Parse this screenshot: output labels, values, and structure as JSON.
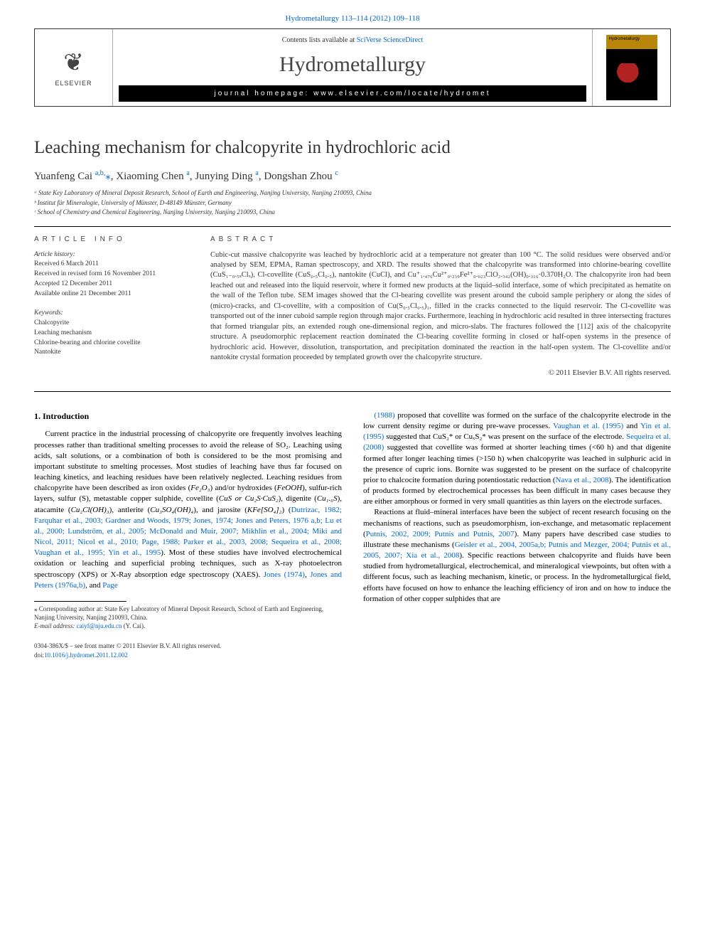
{
  "top_link": "Hydrometallurgy 113–114 (2012) 109–118",
  "header": {
    "contents_prefix": "Contents lists available at ",
    "contents_link": "SciVerse ScienceDirect",
    "journal": "Hydrometallurgy",
    "homepage_label": "journal homepage: www.elsevier.com/locate/hydromet",
    "elsevier_brand": "ELSEVIER",
    "cover_text": "Hydrometallurgy"
  },
  "title": "Leaching mechanism for chalcopyrite in hydrochloric acid",
  "authors_html": "Yuanfeng Cai <a href='#'><sup>a,b,</sup></a><a href='#'>⁎</a>, Xiaoming Chen <a href='#'><sup>a</sup></a>, Junying Ding <a href='#'><sup>a</sup></a>, Dongshan Zhou <a href='#'><sup>c</sup></a>",
  "affiliations": [
    "ᵃ State Key Laboratory of Mineral Deposit Research, School of Earth and Engineering, Nanjing University, Nanjing 210093, China",
    "ᵇ Institut für Mineralogie, University of Münster, D-48149 Münster, Germany",
    "ᶜ School of Chemistry and Chemical Engineering, Nanjing University, Nanjing 210093, China"
  ],
  "info_head": "ARTICLE INFO",
  "abstract_head": "ABSTRACT",
  "history": {
    "label": "Article history:",
    "items": [
      "Received 6 March 2011",
      "Received in revised form 16 November 2011",
      "Accepted 12 December 2011",
      "Available online 21 December 2011"
    ]
  },
  "keywords": {
    "label": "Keywords:",
    "items": [
      "Chalcopyrite",
      "Leaching mechanism",
      "Chlorine-bearing and chlorine covellite",
      "Nantokite"
    ]
  },
  "abstract": "Cubic-cut massive chalcopyrite was leached by hydrochloric acid at a temperature not greater than 100 °C. The solid residues were observed and/or analysed by SEM, EPMA, Raman spectroscopy, and XRD. The results showed that the chalcopyrite was transformed into chlorine-bearing covellite (CuS₁₋₀.₅ₓClₓ), Cl-covellite (CuS₀.₅Cl₀.₅), nantokite (CuCl), and Cu⁺₁.₄₇₆Cu²⁺₀.₂₃₉Fe²⁺₀.₀₂₃ClO₂.₃₄₂(OH)₀.₃₁₆·0.370H₂O. The chalcopyrite iron had been leached out and released into the liquid reservoir, where it formed new products at the liquid–solid interface, some of which precipitated as hematite on the wall of the Teflon tube. SEM images showed that the Cl-bearing covellite was present around the cuboid sample periphery or along the sides of (micro)-cracks, and Cl-covellite, with a composition of Cu(S₀.₅Cl₀.₅)₁, filled in the cracks connected to the liquid reservoir. The Cl-covellite was transported out of the inner cuboid sample region through major cracks. Furthermore, leaching in hydrochloric acid resulted in three intersecting fractures that formed triangular pits, an extended rough one-dimensional region, and micro-slabs. The fractures followed the [112] axis of the chalcopyrite structure. A pseudomorphic replacement reaction dominated the Cl-bearing covellite forming in closed or half-open systems in the presence of hydrochloric acid. However, dissolution, transportation, and precipitation dominated the reaction in the half-open system. The Cl-covellite and/or nantokite crystal formation proceeded by templated growth over the chalcopyrite structure.",
  "copyright": "© 2011 Elsevier B.V. All rights reserved.",
  "intro_head": "1. Introduction",
  "intro_p1_html": "Current practice in the industrial processing of chalcopyrite ore frequently involves leaching processes rather than traditional smelting processes to avoid the release of SO₂. Leaching using acids, salt solutions, or a combination of both is considered to be the most promising and important substitute to smelting processes. Most studies of leaching have thus far focused on leaching kinetics, and leaching residues have been relatively neglected. Leaching residues from chalcopyrite have been described as iron oxides (<i>Fe₂O₃</i>) and/or hydroxides (<i>FeOOH</i>), sulfur-rich layers, sulfur (S), metastable copper sulphide, covellite (<i>CuS or Cu₂S·CuS₂</i>), digenite (<i>Cu₁.₆S</i>), atacamite (<i>Cu₂Cl(OH)₃</i>), antlerite (<i>Cu₃SO₄(OH)₄</i>), and jarosite (<i>KFe[SO₄]₂</i>) (<a href='#'>Dutrizac, 1982; Farquhar et al., 2003; Gardner and Woods, 1979; Jones, 1974; Jones and Peters, 1976 a,b; Lu et al., 2000; Lundström, et al., 2005; McDonald and Muir, 2007; Mikhlin et al., 2004; Miki and Nicol, 2011; Nicol et al., 2010; Page, 1988; Parker et al., 2003, 2008; Sequeira et al., 2008; Vaughan et al., 1995; Yin et al., 1995</a>). Most of these studies have involved electrochemical oxidation or leaching and superficial probing techniques, such as X-ray photoelectron spectroscopy (XPS) or X-Ray absorption edge spectroscopy (XAES). <a href='#'>Jones (1974)</a>, <a href='#'>Jones and Peters (1976a,b)</a>, and <a href='#'>Page</a>",
  "intro_p2_html": "<a href='#'>(1988)</a> proposed that covellite was formed on the surface of the chalcopyrite electrode in the low current density regime or during pre-wave processes. <a href='#'>Vaughan et al. (1995)</a> and <a href='#'>Yin et al. (1995)</a> suggested that CuS₂* or CuₓS₂* was present on the surface of the electrode. <a href='#'>Sequeira et al. (2008)</a> suggested that covellite was formed at shorter leaching times (&lt;60 h) and that digenite formed after longer leaching times (&gt;150 h) when chalcopyrite was leached in sulphuric acid in the presence of cupric ions. Bornite was suggested to be present on the surface of chalcopyrite prior to chalcocite formation during potentiostatic reduction (<a href='#'>Nava et al., 2008</a>). The identification of products formed by electrochemical processes has been difficult in many cases because they are either amorphous or formed in very small quantities as thin layers on the electrode surfaces.",
  "intro_p3_html": "Reactions at fluid–mineral interfaces have been the subject of recent research focusing on the mechanisms of reactions, such as pseudomorphism, ion-exchange, and metasomatic replacement (<a href='#'>Putnis, 2002, 2009; Putnis and Putnis, 2007</a>). Many papers have described case studies to illustrate these mechanisms (<a href='#'>Geisler et al., 2004, 2005a,b; Putnis and Mezger, 2004; Putnis et al., 2005, 2007; Xia et al., 2008</a>). Specific reactions between chalcopyrite and fluids have been studied from hydrometallurgical, electrochemical, and mineralogical viewpoints, but often with a different focus, such as leaching mechanism, kinetic, or process. In the hydrometallurgical field, efforts have focused on how to enhance the leaching efficiency of iron and on how to induce the formation of other copper sulphides that are",
  "footnote": {
    "corr": "⁎ Corresponding author at: State Key Laboratory of Mineral Deposit Research, School of Earth and Engineering, Nanjing University, Nanjing 210093, China.",
    "email_label": "E-mail address: ",
    "email": "caiyf@nju.edu.cn",
    "email_suffix": " (Y. Cai)."
  },
  "footer": {
    "line1": "0304-386X/$ – see front matter © 2011 Elsevier B.V. All rights reserved.",
    "doi_label": "doi:",
    "doi": "10.1016/j.hydromet.2011.12.002"
  },
  "colors": {
    "link": "#0066cc",
    "text": "#000000",
    "muted": "#333333",
    "rule": "#000000"
  },
  "typography": {
    "body_pt": 11,
    "abstract_pt": 10.5,
    "title_pt": 25,
    "journal_pt": 30,
    "affil_pt": 9,
    "meta_pt": 9.5,
    "sec_head_pt": 10,
    "footnote_pt": 9
  }
}
